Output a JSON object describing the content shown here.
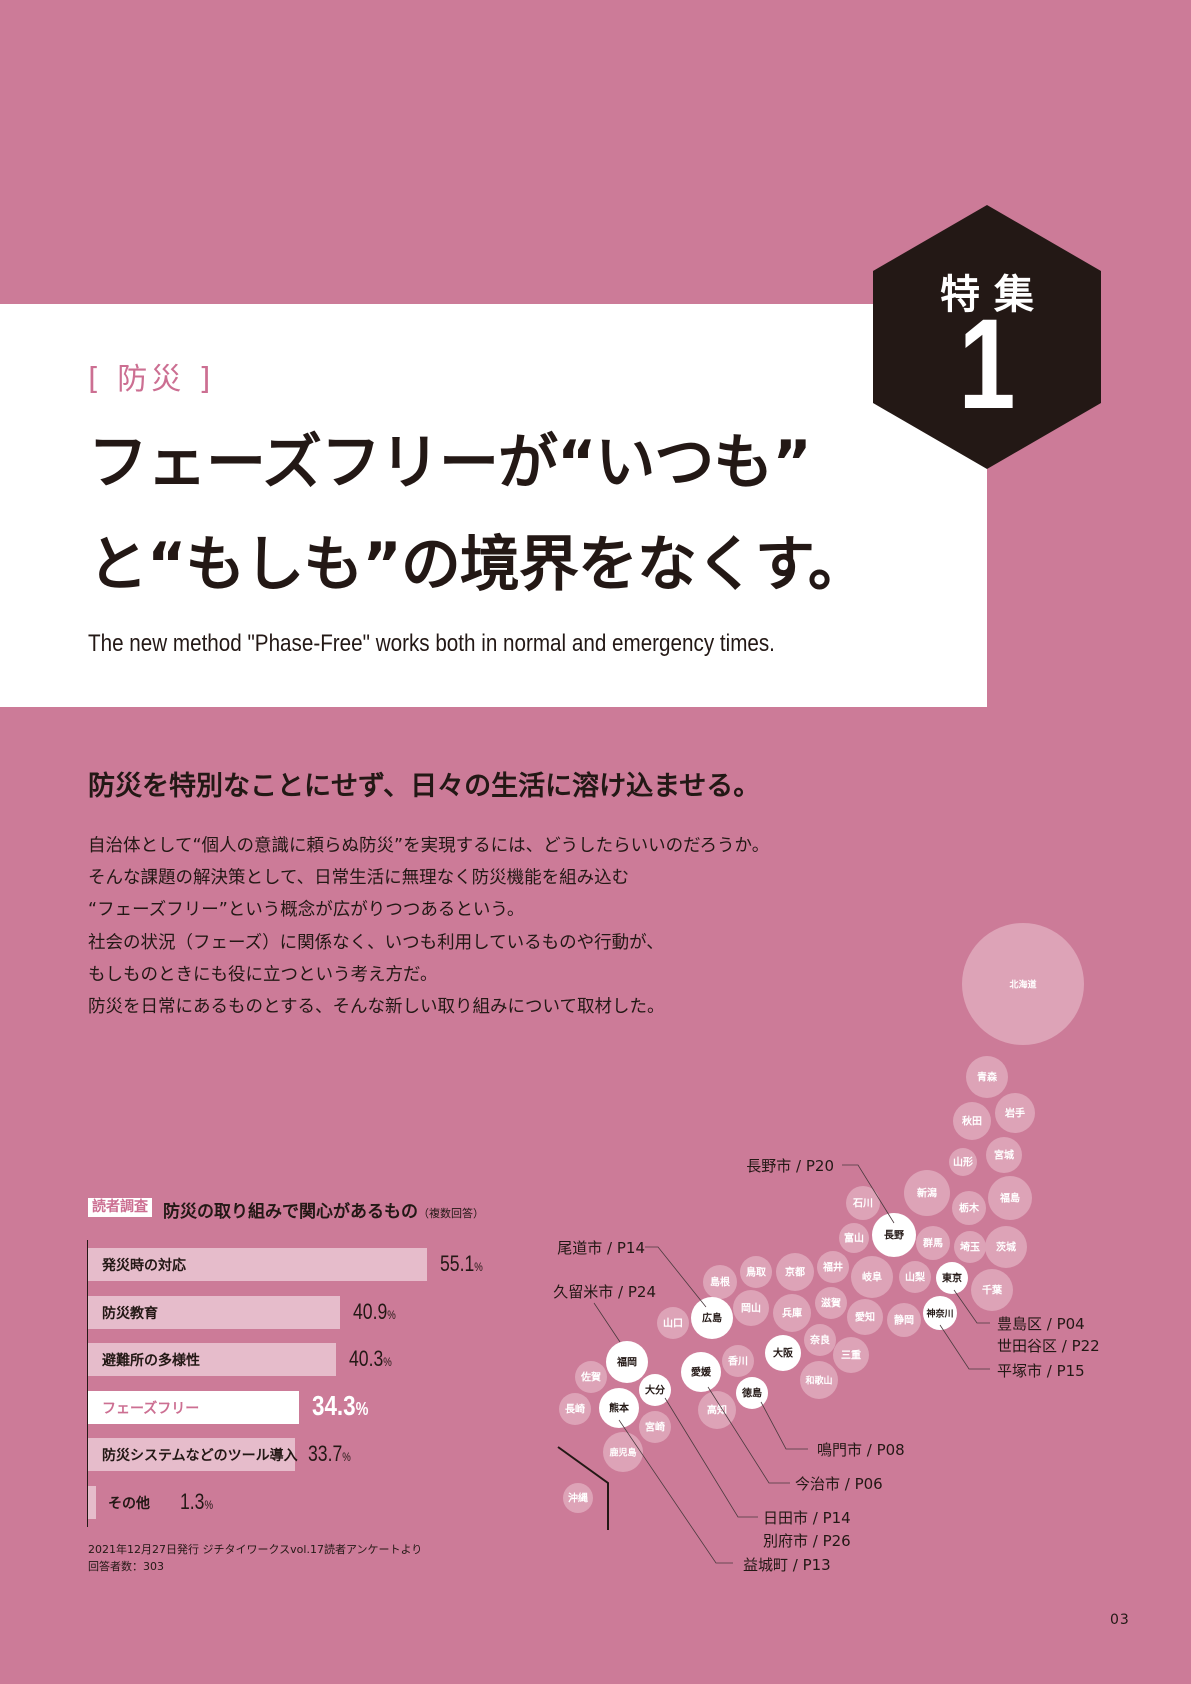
{
  "header": {
    "feature_label": "特集",
    "feature_number": "1",
    "category": "[ 防災 ]",
    "title_line1": "フェーズフリーが“いつも”",
    "title_line2": "と“もしも”の境界をなくす。",
    "subtitle": "The new method \"Phase-Free\" works both in normal and emergency times."
  },
  "lead": "防災を特別なことにせず、日々の生活に溶け込ませる。",
  "body": [
    "自治体として“個人の意識に頼らぬ防災”を実現するには、どうしたらいいのだろうか。",
    "そんな課題の解決策として、日常生活に無理なく防災機能を組み込む",
    "“フェーズフリー”という概念が広がりつつあるという。",
    "社会の状況（フェーズ）に関係なく、いつも利用しているものや行動が、",
    "もしものときにも役に立つという考え方だ。",
    "防災を日常にあるものとする、そんな新しい取り組みについて取材した。"
  ],
  "survey": {
    "tag": "読者調査",
    "title": "防災の取り組みで関心があるもの",
    "note": "（複数回答）",
    "source_line1": "2021年12月27日発行 ジチタイワークスvol.17読者アンケートより",
    "source_line2": "回答者数：303"
  },
  "chart_data": {
    "type": "bar",
    "orientation": "horizontal",
    "title": "防災の取り組みで関心があるもの",
    "categories": [
      "発災時の対応",
      "防災教育",
      "避難所の多様性",
      "フェーズフリー",
      "防災システムなどのツール導入",
      "その他"
    ],
    "values": [
      55.1,
      40.9,
      40.3,
      34.3,
      33.7,
      1.3
    ],
    "value_labels": [
      "55.1",
      "40.9",
      "40.3",
      "34.3",
      "33.7",
      "1.3"
    ],
    "unit": "%",
    "highlight": "フェーズフリー",
    "grid": false
  },
  "map": {
    "prefectures": [
      {
        "name": "北海道",
        "featured": false
      },
      {
        "name": "青森",
        "featured": false
      },
      {
        "name": "秋田",
        "featured": false
      },
      {
        "name": "岩手",
        "featured": false
      },
      {
        "name": "山形",
        "featured": false
      },
      {
        "name": "宮城",
        "featured": false
      },
      {
        "name": "新潟",
        "featured": false
      },
      {
        "name": "福島",
        "featured": false
      },
      {
        "name": "石川",
        "featured": false
      },
      {
        "name": "栃木",
        "featured": false
      },
      {
        "name": "長野",
        "featured": true
      },
      {
        "name": "富山",
        "featured": false
      },
      {
        "name": "群馬",
        "featured": false
      },
      {
        "name": "埼玉",
        "featured": false
      },
      {
        "name": "茨城",
        "featured": false
      },
      {
        "name": "鳥取",
        "featured": false
      },
      {
        "name": "島根",
        "featured": false
      },
      {
        "name": "京都",
        "featured": false
      },
      {
        "name": "福井",
        "featured": false
      },
      {
        "name": "岐阜",
        "featured": false
      },
      {
        "name": "山梨",
        "featured": false
      },
      {
        "name": "東京",
        "featured": true
      },
      {
        "name": "千葉",
        "featured": false
      },
      {
        "name": "山口",
        "featured": false
      },
      {
        "name": "広島",
        "featured": true
      },
      {
        "name": "岡山",
        "featured": false
      },
      {
        "name": "兵庫",
        "featured": false
      },
      {
        "name": "滋賀",
        "featured": false
      },
      {
        "name": "愛知",
        "featured": false
      },
      {
        "name": "静岡",
        "featured": false
      },
      {
        "name": "神奈川",
        "featured": true
      },
      {
        "name": "奈良",
        "featured": false
      },
      {
        "name": "三重",
        "featured": false
      },
      {
        "name": "大阪",
        "featured": true
      },
      {
        "name": "香川",
        "featured": false
      },
      {
        "name": "愛媛",
        "featured": true
      },
      {
        "name": "和歌山",
        "featured": false
      },
      {
        "name": "徳島",
        "featured": true
      },
      {
        "name": "高知",
        "featured": false
      },
      {
        "name": "福岡",
        "featured": true
      },
      {
        "name": "佐賀",
        "featured": false
      },
      {
        "name": "大分",
        "featured": true
      },
      {
        "name": "長崎",
        "featured": false
      },
      {
        "name": "熊本",
        "featured": true
      },
      {
        "name": "宮崎",
        "featured": false
      },
      {
        "name": "鹿児島",
        "featured": false
      },
      {
        "name": "沖縄",
        "featured": false
      }
    ],
    "callouts": [
      {
        "id": "nagano",
        "text": "長野市 / P20"
      },
      {
        "id": "onomichi",
        "text": "尾道市 / P14"
      },
      {
        "id": "kurume",
        "text": "久留米市 / P24"
      },
      {
        "id": "toshima",
        "text": "豊島区 / P04"
      },
      {
        "id": "setagaya",
        "text": "世田谷区 / P22"
      },
      {
        "id": "hiratsuka",
        "text": "平塚市 / P15"
      },
      {
        "id": "naruto",
        "text": "鳴門市 / P08"
      },
      {
        "id": "imabari",
        "text": "今治市 / P06"
      },
      {
        "id": "hita",
        "text": "日田市 / P14"
      },
      {
        "id": "beppu",
        "text": "別府市 / P26"
      },
      {
        "id": "mashiki",
        "text": "益城町 / P13"
      }
    ]
  },
  "page_number": "03",
  "colors": {
    "background": "#cc7b98",
    "accent_pink": "#cc6f92",
    "dark": "#231815",
    "bubble": "#dda3b7",
    "bar": "#e6bccb",
    "highlight": "#ffffff"
  }
}
